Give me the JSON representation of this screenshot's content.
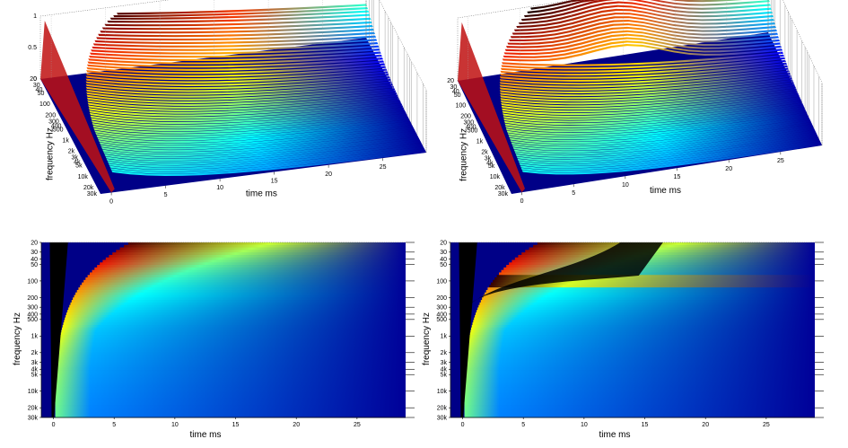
{
  "chart_data": [
    {
      "type": "heatmap",
      "view": "3d-surface",
      "xlabel": "time   ms",
      "ylabel": "frequency    Hz",
      "x_ticks": [
        "0",
        "5",
        "10",
        "15",
        "20",
        "25"
      ],
      "y_ticks": [
        "20",
        "30",
        "40",
        "50",
        "100",
        "200",
        "300",
        "400",
        "500",
        "1k",
        "2k",
        "3k",
        "4k",
        "5k",
        "10k",
        "20k",
        "30k"
      ],
      "z_ticks": [
        "0",
        "0.5",
        "1"
      ],
      "xlim": [
        -1,
        29
      ],
      "ylim": [
        20,
        30000
      ],
      "zlim": [
        0,
        1
      ],
      "y_scale": "log",
      "colormap": "jet+hot",
      "grid": true
    },
    {
      "type": "heatmap",
      "view": "3d-surface",
      "xlabel": "time   ms",
      "ylabel": "frequency    Hz",
      "x_ticks": [
        "0",
        "5",
        "10",
        "15",
        "20",
        "25"
      ],
      "y_ticks": [
        "20",
        "30",
        "40",
        "50",
        "100",
        "200",
        "300",
        "400",
        "500",
        "1k",
        "2k",
        "3k",
        "4k",
        "5k",
        "10k",
        "20k",
        "30k"
      ],
      "z_ticks": [],
      "xlim": [
        -1,
        29
      ],
      "ylim": [
        20,
        30000
      ],
      "zlim": [
        0,
        1
      ],
      "y_scale": "log",
      "colormap": "jet+hot",
      "grid": true
    },
    {
      "type": "heatmap",
      "view": "2d-top",
      "xlabel": "time   ms",
      "ylabel": "frequency    Hz",
      "x_ticks": [
        "0",
        "5",
        "10",
        "15",
        "20",
        "25"
      ],
      "y_ticks": [
        "20",
        "30",
        "40",
        "50",
        "100",
        "200",
        "300",
        "400",
        "500",
        "1k",
        "2k",
        "3k",
        "4k",
        "5k",
        "10k",
        "20k",
        "30k"
      ],
      "xlim": [
        -1,
        29
      ],
      "ylim": [
        20,
        30000
      ],
      "y_scale": "log",
      "colormap": "jet+hot",
      "grid": false
    },
    {
      "type": "heatmap",
      "view": "2d-top",
      "xlabel": "time   ms",
      "ylabel": "frequency    Hz",
      "x_ticks": [
        "0",
        "5",
        "10",
        "15",
        "20",
        "25"
      ],
      "y_ticks": [
        "20",
        "30",
        "40",
        "50",
        "100",
        "200",
        "300",
        "400",
        "500",
        "1k",
        "2k",
        "3k",
        "4k",
        "5k",
        "10k",
        "20k",
        "30k"
      ],
      "xlim": [
        -1,
        29
      ],
      "ylim": [
        20,
        30000
      ],
      "y_scale": "log",
      "colormap": "jet+hot",
      "grid": false
    }
  ]
}
